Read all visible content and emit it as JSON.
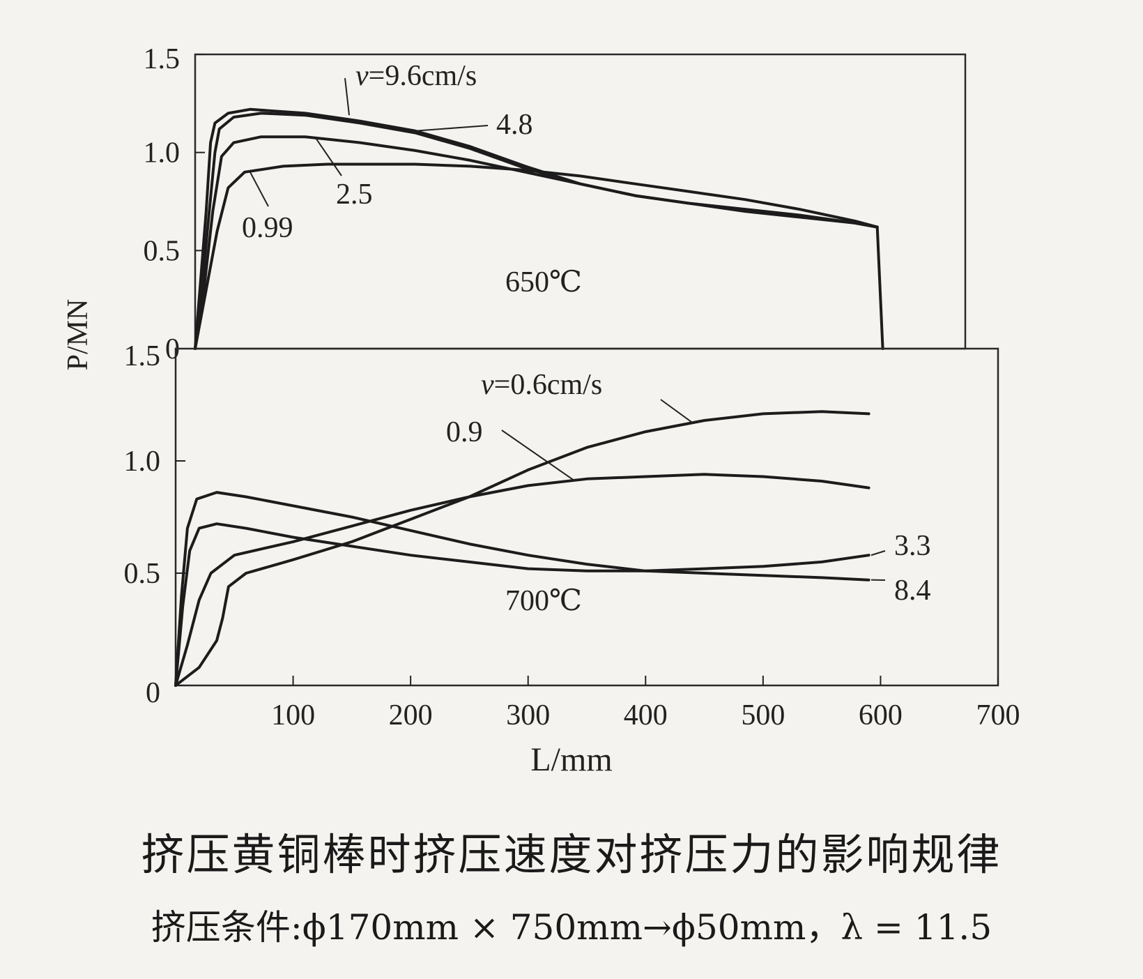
{
  "chart_data": [
    {
      "type": "line",
      "panel": "top",
      "annotation": "650℃",
      "ylabel": "P/MN",
      "xlabel": "L/mm",
      "xlim": [
        0,
        700
      ],
      "ylim": [
        0,
        1.5
      ],
      "x_ticks": [
        "100",
        "200",
        "300",
        "400",
        "500",
        "600",
        "700"
      ],
      "y_ticks": [
        "0",
        "0.5",
        "1.0",
        "1.5"
      ],
      "series_label_prefix": "v=",
      "series_label_unit": "cm/s",
      "series": [
        {
          "name": "9.6",
          "points": [
            [
              0,
              0
            ],
            [
              5,
              0.35
            ],
            [
              10,
              0.7
            ],
            [
              14,
              1.05
            ],
            [
              18,
              1.15
            ],
            [
              30,
              1.2
            ],
            [
              50,
              1.22
            ],
            [
              100,
              1.2
            ],
            [
              150,
              1.16
            ],
            [
              200,
              1.11
            ],
            [
              250,
              1.03
            ],
            [
              300,
              0.93
            ],
            [
              350,
              0.84
            ],
            [
              400,
              0.78
            ],
            [
              450,
              0.74
            ],
            [
              500,
              0.71
            ],
            [
              550,
              0.68
            ],
            [
              600,
              0.64
            ],
            [
              620,
              0.62
            ],
            [
              625,
              0
            ]
          ]
        },
        {
          "name": "4.8",
          "points": [
            [
              0,
              0
            ],
            [
              6,
              0.3
            ],
            [
              12,
              0.65
            ],
            [
              18,
              1.0
            ],
            [
              22,
              1.12
            ],
            [
              35,
              1.18
            ],
            [
              60,
              1.2
            ],
            [
              100,
              1.19
            ],
            [
              150,
              1.15
            ],
            [
              200,
              1.1
            ],
            [
              250,
              1.02
            ],
            [
              300,
              0.92
            ],
            [
              350,
              0.84
            ],
            [
              400,
              0.78
            ],
            [
              450,
              0.74
            ],
            [
              500,
              0.71
            ],
            [
              550,
              0.68
            ],
            [
              600,
              0.64
            ],
            [
              620,
              0.62
            ]
          ]
        },
        {
          "name": "2.5",
          "points": [
            [
              0,
              0
            ],
            [
              8,
              0.3
            ],
            [
              16,
              0.7
            ],
            [
              24,
              0.98
            ],
            [
              35,
              1.05
            ],
            [
              60,
              1.08
            ],
            [
              100,
              1.08
            ],
            [
              150,
              1.05
            ],
            [
              200,
              1.01
            ],
            [
              250,
              0.96
            ],
            [
              300,
              0.9
            ],
            [
              350,
              0.84
            ],
            [
              400,
              0.78
            ],
            [
              450,
              0.74
            ],
            [
              500,
              0.7
            ],
            [
              550,
              0.67
            ],
            [
              600,
              0.64
            ],
            [
              620,
              0.62
            ]
          ]
        },
        {
          "name": "0.99",
          "points": [
            [
              0,
              0
            ],
            [
              10,
              0.3
            ],
            [
              20,
              0.6
            ],
            [
              30,
              0.82
            ],
            [
              45,
              0.9
            ],
            [
              80,
              0.93
            ],
            [
              120,
              0.94
            ],
            [
              200,
              0.94
            ],
            [
              250,
              0.93
            ],
            [
              300,
              0.91
            ],
            [
              350,
              0.88
            ],
            [
              400,
              0.84
            ],
            [
              450,
              0.8
            ],
            [
              500,
              0.76
            ],
            [
              550,
              0.71
            ],
            [
              600,
              0.65
            ],
            [
              620,
              0.62
            ]
          ]
        }
      ]
    },
    {
      "type": "line",
      "panel": "bottom",
      "annotation": "700℃",
      "ylabel": "P/MN",
      "xlabel": "L/mm",
      "xlim": [
        0,
        700
      ],
      "ylim": [
        0,
        1.5
      ],
      "x_ticks": [
        "100",
        "200",
        "300",
        "400",
        "500",
        "600",
        "700"
      ],
      "y_ticks": [
        "0",
        "0.5",
        "1.0",
        "1.5"
      ],
      "series_label_prefix": "v=",
      "series_label_unit": "cm/s",
      "series": [
        {
          "name": "0.6",
          "points": [
            [
              0,
              0
            ],
            [
              20,
              0.08
            ],
            [
              35,
              0.2
            ],
            [
              40,
              0.3
            ],
            [
              45,
              0.44
            ],
            [
              60,
              0.5
            ],
            [
              100,
              0.56
            ],
            [
              150,
              0.64
            ],
            [
              200,
              0.74
            ],
            [
              250,
              0.84
            ],
            [
              300,
              0.96
            ],
            [
              350,
              1.06
            ],
            [
              400,
              1.13
            ],
            [
              450,
              1.18
            ],
            [
              500,
              1.21
            ],
            [
              550,
              1.22
            ],
            [
              590,
              1.21
            ]
          ]
        },
        {
          "name": "0.9",
          "points": [
            [
              0,
              0
            ],
            [
              10,
              0.18
            ],
            [
              20,
              0.38
            ],
            [
              30,
              0.5
            ],
            [
              50,
              0.58
            ],
            [
              100,
              0.64
            ],
            [
              150,
              0.71
            ],
            [
              200,
              0.78
            ],
            [
              250,
              0.84
            ],
            [
              300,
              0.89
            ],
            [
              350,
              0.92
            ],
            [
              400,
              0.93
            ],
            [
              450,
              0.94
            ],
            [
              500,
              0.93
            ],
            [
              550,
              0.91
            ],
            [
              590,
              0.88
            ]
          ]
        },
        {
          "name": "3.3",
          "points": [
            [
              0,
              0
            ],
            [
              6,
              0.35
            ],
            [
              12,
              0.6
            ],
            [
              20,
              0.7
            ],
            [
              35,
              0.72
            ],
            [
              60,
              0.7
            ],
            [
              100,
              0.66
            ],
            [
              150,
              0.62
            ],
            [
              200,
              0.58
            ],
            [
              250,
              0.55
            ],
            [
              300,
              0.52
            ],
            [
              350,
              0.51
            ],
            [
              400,
              0.51
            ],
            [
              450,
              0.52
            ],
            [
              500,
              0.53
            ],
            [
              550,
              0.55
            ],
            [
              590,
              0.58
            ]
          ]
        },
        {
          "name": "8.4",
          "points": [
            [
              0,
              0
            ],
            [
              5,
              0.4
            ],
            [
              10,
              0.7
            ],
            [
              18,
              0.83
            ],
            [
              35,
              0.86
            ],
            [
              60,
              0.84
            ],
            [
              100,
              0.8
            ],
            [
              150,
              0.75
            ],
            [
              200,
              0.69
            ],
            [
              250,
              0.63
            ],
            [
              300,
              0.58
            ],
            [
              350,
              0.54
            ],
            [
              400,
              0.51
            ],
            [
              450,
              0.5
            ],
            [
              500,
              0.49
            ],
            [
              550,
              0.48
            ],
            [
              590,
              0.47
            ]
          ]
        }
      ]
    }
  ],
  "caption": {
    "title": "挤压黄铜棒时挤压速度对挤压力的影响规律",
    "subtitle": "挤压条件:ϕ170mm × 750mm→ϕ50mm，λ = 11.5"
  }
}
